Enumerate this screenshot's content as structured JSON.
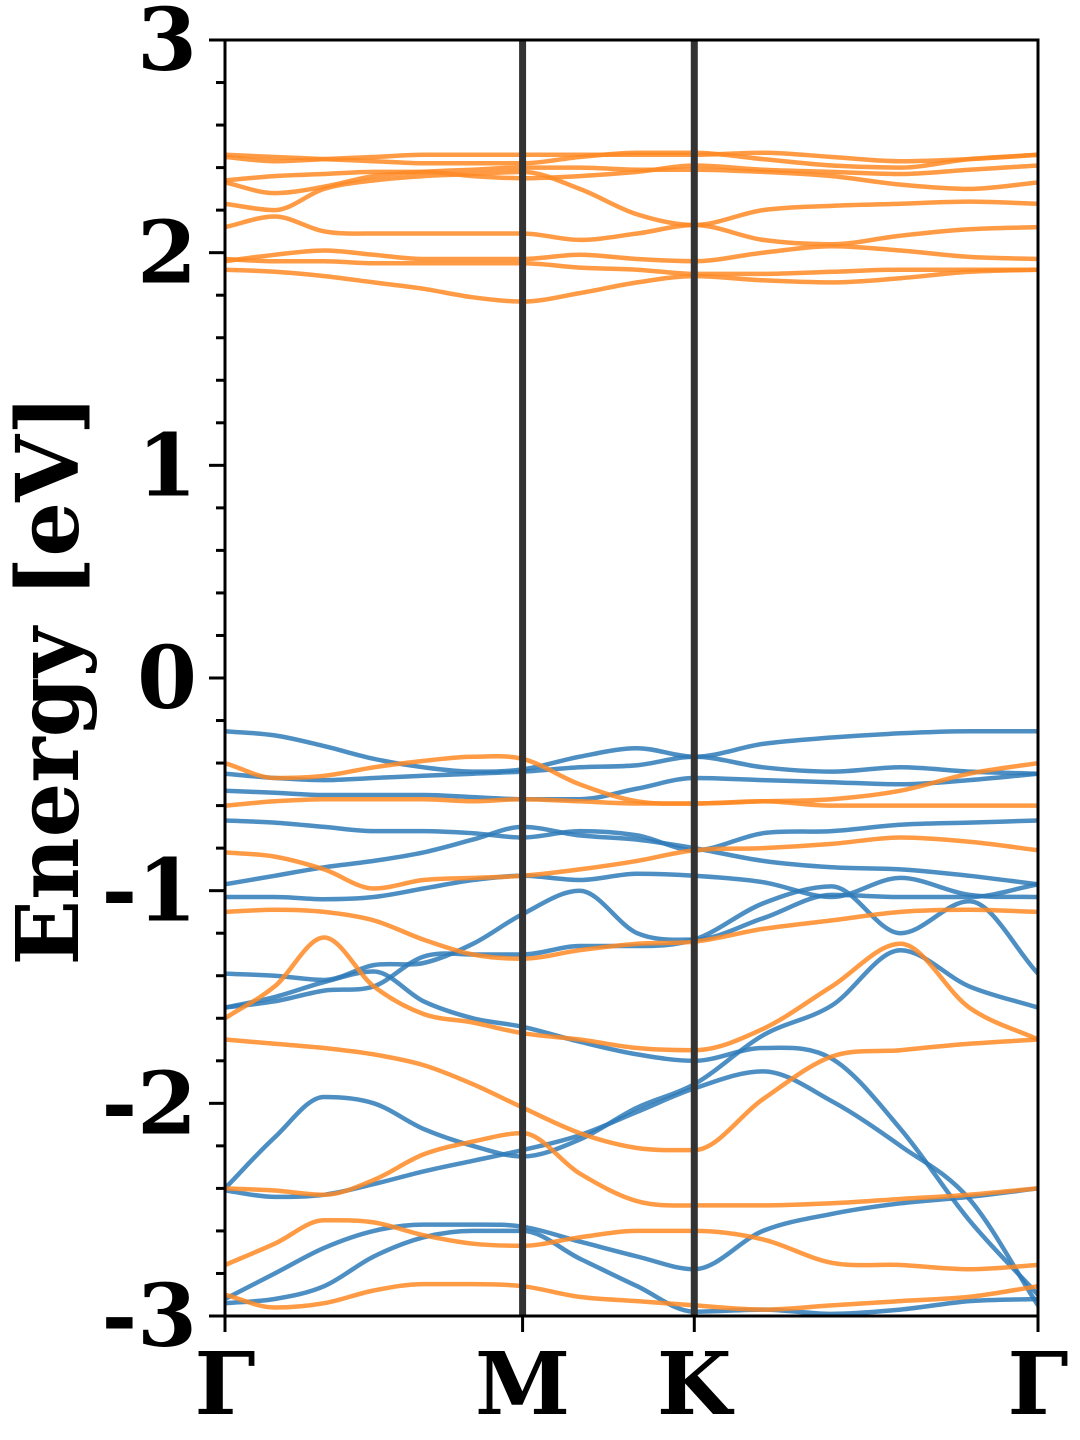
{
  "chart_data": {
    "type": "line",
    "title": "",
    "xlabel": "",
    "ylabel": "Energy [eV]",
    "ylim": [
      -3,
      3
    ],
    "yticks": [
      -3,
      -2,
      -1,
      0,
      1,
      2,
      3
    ],
    "ytick_labels": [
      "-3",
      "-2",
      "-1",
      "0",
      "1",
      "2",
      "3"
    ],
    "xlim": [
      0,
      2.732
    ],
    "xticks": [
      0,
      1,
      1.577,
      2.732
    ],
    "xtick_labels": [
      "Γ",
      "M",
      "K",
      "Γ"
    ],
    "grid": false,
    "legend": "none",
    "colors": {
      "spin_up": "#2f7bb8",
      "spin_down": "#ff8a24",
      "kpath_lines": "#333333",
      "axes": "#000000"
    },
    "x": [
      0,
      0.167,
      0.333,
      0.5,
      0.667,
      0.833,
      1,
      1.192,
      1.385,
      1.577,
      1.808,
      2.039,
      2.27,
      2.501,
      2.732
    ],
    "series": [
      {
        "group": "spin_up",
        "values": [
          -0.25,
          -0.27,
          -0.32,
          -0.38,
          -0.42,
          -0.44,
          -0.43,
          -0.37,
          -0.33,
          -0.37,
          -0.31,
          -0.28,
          -0.26,
          -0.25,
          -0.25
        ]
      },
      {
        "group": "spin_up",
        "values": [
          -0.45,
          -0.47,
          -0.48,
          -0.47,
          -0.46,
          -0.45,
          -0.44,
          -0.42,
          -0.41,
          -0.37,
          -0.42,
          -0.44,
          -0.42,
          -0.44,
          -0.45
        ]
      },
      {
        "group": "spin_up",
        "values": [
          -0.53,
          -0.54,
          -0.55,
          -0.55,
          -0.55,
          -0.56,
          -0.57,
          -0.57,
          -0.52,
          -0.47,
          -0.48,
          -0.49,
          -0.5,
          -0.48,
          -0.45
        ]
      },
      {
        "group": "spin_up",
        "values": [
          -0.67,
          -0.68,
          -0.7,
          -0.72,
          -0.72,
          -0.73,
          -0.75,
          -0.72,
          -0.74,
          -0.81,
          -0.73,
          -0.72,
          -0.69,
          -0.68,
          -0.67
        ]
      },
      {
        "group": "spin_up",
        "values": [
          -0.97,
          -0.93,
          -0.89,
          -0.86,
          -0.82,
          -0.76,
          -0.7,
          -0.74,
          -0.76,
          -0.8,
          -0.86,
          -0.89,
          -0.9,
          -0.93,
          -0.97
        ]
      },
      {
        "group": "spin_up",
        "values": [
          -1.03,
          -1.03,
          -1.04,
          -1.03,
          -0.99,
          -0.95,
          -0.93,
          -0.95,
          -0.92,
          -0.93,
          -0.96,
          -1.03,
          -0.94,
          -1.02,
          -1.03
        ]
      },
      {
        "group": "spin_up",
        "values": [
          -1.39,
          -1.4,
          -1.42,
          -1.35,
          -1.34,
          -1.25,
          -1.11,
          -1.0,
          -1.2,
          -1.23,
          -1.13,
          -1.02,
          -1.03,
          -1.03,
          -0.97
        ]
      },
      {
        "group": "spin_up",
        "values": [
          -1.55,
          -1.52,
          -1.47,
          -1.45,
          -1.31,
          -1.3,
          -1.3,
          -1.26,
          -1.26,
          -1.23,
          -1.06,
          -0.98,
          -1.2,
          -1.05,
          -1.39
        ]
      },
      {
        "group": "spin_up",
        "values": [
          -2.4,
          -2.16,
          -1.97,
          -2.0,
          -2.12,
          -2.2,
          -2.25,
          -2.17,
          -2.02,
          -1.91,
          -1.68,
          -1.54,
          -1.28,
          -1.45,
          -1.55
        ]
      },
      {
        "group": "spin_up",
        "values": [
          -2.92,
          -2.8,
          -2.68,
          -2.6,
          -2.57,
          -2.57,
          -2.58,
          -2.65,
          -2.72,
          -2.78,
          -2.6,
          -2.52,
          -2.47,
          -2.44,
          -2.4
        ]
      },
      {
        "group": "spin_up",
        "values": [
          -2.94,
          -2.92,
          -2.86,
          -2.72,
          -2.63,
          -2.6,
          -2.6,
          -2.73,
          -2.86,
          -2.98,
          -2.97,
          -2.99,
          -2.97,
          -2.93,
          -2.92
        ]
      },
      {
        "group": "spin_up",
        "values": [
          -2.41,
          -2.44,
          -2.43,
          -2.38,
          -2.32,
          -2.27,
          -2.22,
          -2.15,
          -2.04,
          -1.93,
          -1.85,
          -1.99,
          -2.2,
          -2.45,
          -2.95
        ]
      },
      {
        "group": "spin_up",
        "values": [
          -1.55,
          -1.5,
          -1.43,
          -1.38,
          -1.52,
          -1.6,
          -1.64,
          -1.71,
          -1.77,
          -1.8,
          -1.74,
          -1.79,
          -2.12,
          -2.55,
          -2.9
        ]
      },
      {
        "group": "spin_down",
        "values": [
          -0.4,
          -0.47,
          -0.46,
          -0.42,
          -0.39,
          -0.37,
          -0.38,
          -0.5,
          -0.58,
          -0.59,
          -0.58,
          -0.57,
          -0.53,
          -0.45,
          -0.4
        ]
      },
      {
        "group": "spin_down",
        "values": [
          -0.6,
          -0.58,
          -0.57,
          -0.57,
          -0.57,
          -0.58,
          -0.57,
          -0.58,
          -0.59,
          -0.59,
          -0.58,
          -0.6,
          -0.6,
          -0.6,
          -0.6
        ]
      },
      {
        "group": "spin_down",
        "values": [
          -0.82,
          -0.84,
          -0.9,
          -0.99,
          -0.95,
          -0.94,
          -0.93,
          -0.9,
          -0.86,
          -0.81,
          -0.8,
          -0.78,
          -0.75,
          -0.77,
          -0.81
        ]
      },
      {
        "group": "spin_down",
        "values": [
          -1.1,
          -1.09,
          -1.1,
          -1.14,
          -1.23,
          -1.3,
          -1.32,
          -1.28,
          -1.25,
          -1.24,
          -1.18,
          -1.14,
          -1.1,
          -1.09,
          -1.1
        ]
      },
      {
        "group": "spin_down",
        "values": [
          -1.6,
          -1.45,
          -1.22,
          -1.45,
          -1.58,
          -1.62,
          -1.67,
          -1.7,
          -1.74,
          -1.75,
          -1.65,
          -1.45,
          -1.25,
          -1.55,
          -1.7
        ]
      },
      {
        "group": "spin_down",
        "values": [
          -1.7,
          -1.72,
          -1.74,
          -1.77,
          -1.82,
          -1.91,
          -2.02,
          -2.14,
          -2.21,
          -2.22,
          -1.98,
          -1.78,
          -1.75,
          -1.72,
          -1.7
        ]
      },
      {
        "group": "spin_down",
        "values": [
          -2.4,
          -2.41,
          -2.43,
          -2.36,
          -2.24,
          -2.18,
          -2.14,
          -2.33,
          -2.46,
          -2.48,
          -2.48,
          -2.47,
          -2.45,
          -2.43,
          -2.4
        ]
      },
      {
        "group": "spin_down",
        "values": [
          -2.76,
          -2.66,
          -2.55,
          -2.56,
          -2.62,
          -2.66,
          -2.67,
          -2.63,
          -2.6,
          -2.6,
          -2.64,
          -2.75,
          -2.76,
          -2.78,
          -2.76
        ]
      },
      {
        "group": "spin_down",
        "values": [
          -2.9,
          -2.96,
          -2.94,
          -2.88,
          -2.85,
          -2.85,
          -2.86,
          -2.91,
          -2.93,
          -2.95,
          -2.97,
          -2.95,
          -2.93,
          -2.91,
          -2.86
        ]
      },
      {
        "group": "spin_down",
        "values": [
          1.97,
          1.96,
          1.96,
          1.95,
          1.95,
          1.95,
          1.95,
          1.93,
          1.92,
          1.9,
          1.9,
          1.91,
          1.92,
          1.92,
          1.92
        ]
      },
      {
        "group": "spin_down",
        "values": [
          1.92,
          1.91,
          1.89,
          1.86,
          1.83,
          1.79,
          1.77,
          1.81,
          1.86,
          1.89,
          1.87,
          1.86,
          1.88,
          1.91,
          1.92
        ]
      },
      {
        "group": "spin_down",
        "values": [
          1.96,
          1.99,
          2.01,
          1.99,
          1.97,
          1.97,
          1.97,
          1.99,
          1.97,
          1.96,
          2.0,
          2.03,
          2.01,
          1.98,
          1.97
        ]
      },
      {
        "group": "spin_down",
        "values": [
          2.12,
          2.17,
          2.1,
          2.09,
          2.09,
          2.09,
          2.09,
          2.06,
          2.09,
          2.13,
          2.06,
          2.04,
          2.08,
          2.11,
          2.12
        ]
      },
      {
        "group": "spin_down",
        "values": [
          2.23,
          2.2,
          2.3,
          2.34,
          2.36,
          2.37,
          2.38,
          2.3,
          2.18,
          2.13,
          2.2,
          2.22,
          2.23,
          2.24,
          2.23
        ]
      },
      {
        "group": "spin_down",
        "values": [
          2.33,
          2.28,
          2.31,
          2.36,
          2.38,
          2.39,
          2.4,
          2.4,
          2.39,
          2.39,
          2.38,
          2.36,
          2.32,
          2.3,
          2.33
        ]
      },
      {
        "group": "spin_down",
        "values": [
          2.34,
          2.36,
          2.37,
          2.38,
          2.38,
          2.36,
          2.35,
          2.36,
          2.38,
          2.41,
          2.39,
          2.38,
          2.37,
          2.39,
          2.41
        ]
      },
      {
        "group": "spin_down",
        "values": [
          2.46,
          2.45,
          2.44,
          2.43,
          2.42,
          2.42,
          2.42,
          2.45,
          2.47,
          2.47,
          2.44,
          2.41,
          2.4,
          2.44,
          2.46
        ]
      },
      {
        "group": "spin_down",
        "values": [
          2.45,
          2.43,
          2.44,
          2.45,
          2.46,
          2.46,
          2.46,
          2.46,
          2.46,
          2.46,
          2.47,
          2.45,
          2.43,
          2.44,
          2.46
        ]
      }
    ]
  }
}
